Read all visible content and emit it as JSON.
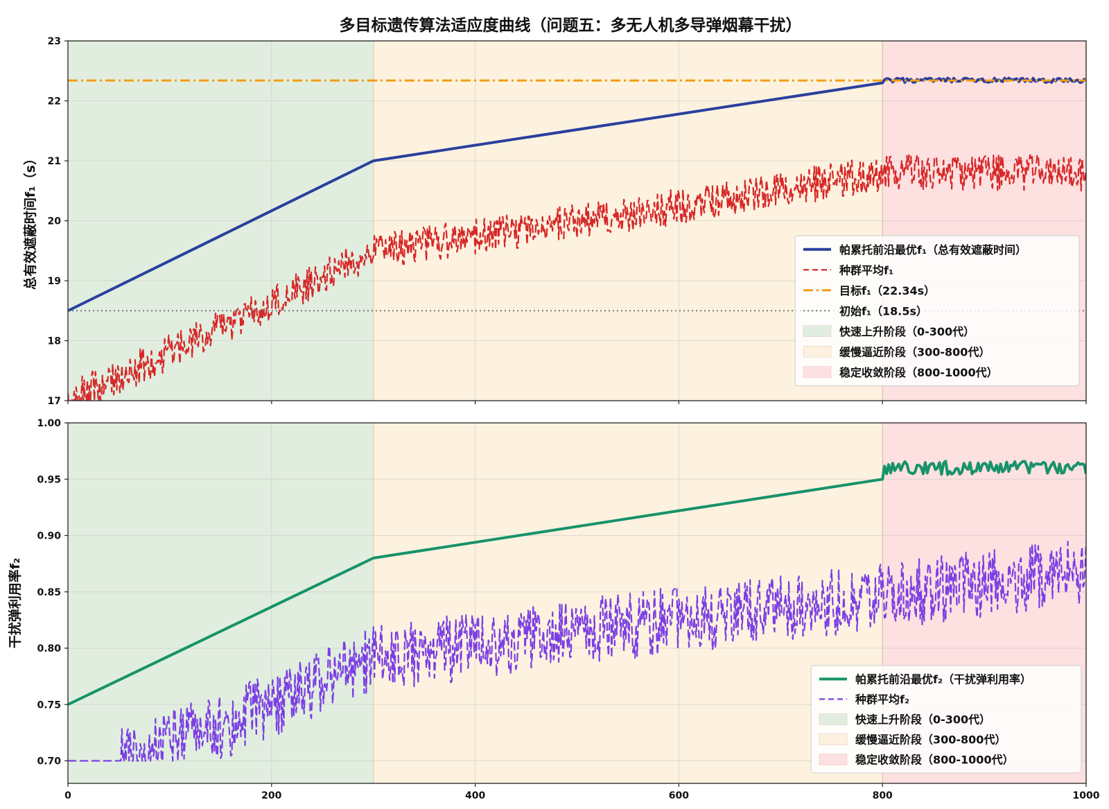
{
  "figure": {
    "title": "多目标遗传算法适应度曲线（问题五：多无人机多导弹烟幕干扰）"
  },
  "chart_data": [
    {
      "type": "line",
      "id": "f1",
      "xlabel": "",
      "ylabel": "总有效遮蔽时间f₁（s）",
      "xlim": [
        0,
        1000
      ],
      "ylim": [
        17,
        23
      ],
      "xticks": [
        "0",
        "200",
        "400",
        "600",
        "800",
        "1000"
      ],
      "yticks": [
        "17",
        "18",
        "19",
        "20",
        "21",
        "22",
        "23"
      ],
      "grid": true,
      "legend_position": "lower-right",
      "phases": [
        {
          "label": "快速上升阶段（0-300代）",
          "from": 0,
          "to": 300,
          "color": "#e1eedf"
        },
        {
          "label": "缓慢逼近阶段（300-800代）",
          "from": 300,
          "to": 800,
          "color": "#fdf2df"
        },
        {
          "label": "稳定收敛阶段（800-1000代）",
          "from": 800,
          "to": 1000,
          "color": "#fde0e0"
        }
      ],
      "series": [
        {
          "name": "帕累托前沿最优f₁（总有效遮蔽时间）",
          "style": "solid",
          "color": "#2a3f9e",
          "points": [
            [
              0,
              18.5
            ],
            [
              300,
              21.0
            ],
            [
              800,
              22.3
            ],
            [
              1000,
              22.34
            ]
          ],
          "converged_band": {
            "from": 800,
            "to": 1000,
            "center": 22.34,
            "spread": 0.04
          }
        },
        {
          "name": "种群平均f₁",
          "style": "dashed",
          "color": "#d62728",
          "trend": [
            [
              0,
              17.0
            ],
            [
              150,
              18.2
            ],
            [
              300,
              19.5
            ],
            [
              550,
              20.1
            ],
            [
              800,
              20.8
            ],
            [
              1000,
              20.8
            ]
          ],
          "noise_amplitude": 0.3
        },
        {
          "name": "目标f₁（22.34s）",
          "style": "dashdot",
          "color": "#f39c12",
          "constant": 22.34
        },
        {
          "name": "初始f₁（18.5s）",
          "style": "dotted",
          "color": "#777777",
          "constant": 18.5
        }
      ]
    },
    {
      "type": "line",
      "id": "f2",
      "xlabel": "",
      "ylabel": "干扰弹利用率f₂",
      "xlim": [
        0,
        1000
      ],
      "ylim": [
        0.68,
        1.0
      ],
      "xticks": [
        "0",
        "200",
        "400",
        "600",
        "800",
        "1000"
      ],
      "yticks": [
        "0.70",
        "0.75",
        "0.80",
        "0.85",
        "0.90",
        "0.95",
        "1.00"
      ],
      "grid": true,
      "legend_position": "lower-right",
      "phases": [
        {
          "label": "快速上升阶段（0-300代）",
          "from": 0,
          "to": 300,
          "color": "#e1eedf"
        },
        {
          "label": "缓慢逼近阶段（300-800代）",
          "from": 300,
          "to": 800,
          "color": "#fdf2df"
        },
        {
          "label": "稳定收敛阶段（800-1000代）",
          "from": 800,
          "to": 1000,
          "color": "#fde0e0"
        }
      ],
      "series": [
        {
          "name": "帕累托前沿最优f₂（干扰弹利用率）",
          "style": "solid",
          "color": "#16936a",
          "points": [
            [
              0,
              0.75
            ],
            [
              300,
              0.88
            ],
            [
              800,
              0.95
            ],
            [
              1000,
              0.96
            ]
          ],
          "converged_band": {
            "from": 800,
            "to": 1000,
            "center": 0.96,
            "spread": 0.006
          }
        },
        {
          "name": "种群平均f₂",
          "style": "dashed",
          "color": "#7b3fe4",
          "trend": [
            [
              0,
              0.7
            ],
            [
              50,
              0.7
            ],
            [
              150,
              0.73
            ],
            [
              300,
              0.79
            ],
            [
              550,
              0.82
            ],
            [
              800,
              0.845
            ],
            [
              1000,
              0.87
            ]
          ],
          "noise_amplitude": 0.03
        }
      ]
    }
  ]
}
